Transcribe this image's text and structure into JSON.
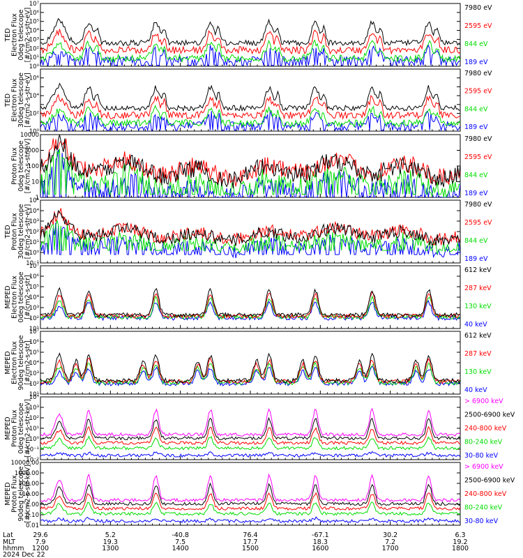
{
  "chart_data": {
    "type": "line",
    "date_label": "2024 Dec 22",
    "x_axis": {
      "row_labels": [
        "Lat",
        "MLT",
        "hhmm"
      ],
      "ticks": [
        {
          "lat": "29.6",
          "mlt": "7.9",
          "hhmm": "1200"
        },
        {
          "lat": "5.2",
          "mlt": "19.3",
          "hhmm": "1300"
        },
        {
          "lat": "-40.8",
          "mlt": "7.5",
          "hhmm": "1400"
        },
        {
          "lat": "76.4",
          "mlt": "17.7",
          "hhmm": "1500"
        },
        {
          "lat": "-67.1",
          "mlt": "18.3",
          "hhmm": "1600"
        },
        {
          "lat": "30.2",
          "mlt": "7.2",
          "hhmm": "1700"
        },
        {
          "lat": "6.3",
          "mlt": "19.2",
          "hhmm": "1800"
        }
      ]
    },
    "panels": [
      {
        "ylabel": [
          "TED",
          "Electron Flux",
          "0deg telescope",
          "[#/cm2-s-str-eV]"
        ],
        "yscale": "log",
        "ylim_exp": [
          0,
          7
        ],
        "tick_labels": [
          "10⁰",
          "10¹",
          "10²",
          "10³",
          "10⁴",
          "10⁵",
          "10⁶",
          "10⁷"
        ],
        "legend": [
          {
            "label": "7980 eV",
            "color": "#000000"
          },
          {
            "label": "2595 eV",
            "color": "#ff0000"
          },
          {
            "label": "844 eV",
            "color": "#00dd00"
          },
          {
            "label": "189 eV",
            "color": "#0000ff"
          }
        ]
      },
      {
        "ylabel": [
          "TED",
          "Electron Flux",
          "30deg telescope",
          "[#/cm2-s-str-eV]"
        ],
        "yscale": "log",
        "ylim_exp": [
          0,
          7
        ],
        "tick_labels": [
          "10⁰",
          "",
          "10²",
          "",
          "10⁴",
          "",
          "10⁶",
          ""
        ],
        "legend": [
          {
            "label": "7980 eV",
            "color": "#000000"
          },
          {
            "label": "2595 eV",
            "color": "#ff0000"
          },
          {
            "label": "844 eV",
            "color": "#00dd00"
          },
          {
            "label": "189 eV",
            "color": "#0000ff"
          }
        ]
      },
      {
        "ylabel": [
          "Proton Flux",
          "0deg telescope",
          "[#/cm2-s-str-eV]"
        ],
        "yscale": "log",
        "ylim_exp": [
          0,
          4
        ],
        "tick_labels": [
          "1",
          "10",
          "100",
          "1000",
          "10000"
        ],
        "legend": [
          {
            "label": "7980 eV",
            "color": "#000000"
          },
          {
            "label": "2595 eV",
            "color": "#ff0000"
          },
          {
            "label": "844 eV",
            "color": "#00dd00"
          },
          {
            "label": "189 eV",
            "color": "#0000ff"
          }
        ]
      },
      {
        "ylabel": [
          "TED",
          "Proton Flux",
          "30deg telescope",
          "[#/cm2-s-str-eV]"
        ],
        "yscale": "log",
        "ylim_exp": [
          -1,
          5
        ],
        "tick_labels": [
          "10⁻¹",
          "10⁰",
          "10¹",
          "10²",
          "10³",
          "10⁴",
          "10⁵"
        ],
        "legend": [
          {
            "label": "7980 eV",
            "color": "#000000"
          },
          {
            "label": "2595 eV",
            "color": "#ff0000"
          },
          {
            "label": "844 eV",
            "color": "#00dd00"
          },
          {
            "label": "189 eV",
            "color": "#0000ff"
          }
        ]
      },
      {
        "ylabel": [
          "MEPED",
          "Electron Flux",
          "0deg telescope",
          "[#/cm2-s-str]"
        ],
        "yscale": "log",
        "ylim_exp": [
          1,
          7
        ],
        "tick_labels": [
          "10¹",
          "10²",
          "10³",
          "10⁴",
          "10⁵",
          "10⁶",
          "10⁷"
        ],
        "legend": [
          {
            "label": "612 keV",
            "color": "#000000"
          },
          {
            "label": "287 keV",
            "color": "#ff0000"
          },
          {
            "label": "130 keV",
            "color": "#00dd00"
          },
          {
            "label": "40 keV",
            "color": "#0000ff"
          }
        ]
      },
      {
        "ylabel": [
          "MEPED",
          "Electron Flux",
          "90deg telescope",
          "[#/cm2-s-str]"
        ],
        "yscale": "log",
        "ylim_exp": [
          1,
          7
        ],
        "tick_labels": [
          "10¹",
          "10²",
          "10³",
          "10⁴",
          "10⁵",
          "10⁶",
          "10⁷"
        ],
        "legend": [
          {
            "label": "612 keV",
            "color": "#000000"
          },
          {
            "label": "287 keV",
            "color": "#ff0000"
          },
          {
            "label": "130 keV",
            "color": "#00dd00"
          },
          {
            "label": "40 keV",
            "color": "#0000ff"
          }
        ]
      },
      {
        "ylabel": [
          "MEPED",
          "Proton Flux",
          "0deg telescope",
          "[#/cm2-s-str-keV]"
        ],
        "yscale": "log",
        "ylim_exp": [
          -2,
          4
        ],
        "tick_labels": [
          "10⁻²",
          "10⁻¹",
          "10⁰",
          "10¹",
          "10²",
          "10³",
          "10⁴"
        ],
        "legend": [
          {
            "label": "> 6900 keV",
            "color": "#ff00ff"
          },
          {
            "label": "2500-6900 keV",
            "color": "#000000"
          },
          {
            "label": "240-800 keV",
            "color": "#ff0000"
          },
          {
            "label": "80-240 keV",
            "color": "#00dd00"
          },
          {
            "label": "30-80 keV",
            "color": "#0000ff"
          }
        ]
      },
      {
        "ylabel": [
          "MEPED",
          "Proton Flux",
          "90deg telescope",
          "[#/cm2-s-str-keV]"
        ],
        "yscale": "log",
        "ylim_exp": [
          -2,
          4
        ],
        "tick_labels": [
          "0.01",
          "0.10",
          "1.00",
          "10.00",
          "100.00",
          "1000.00",
          "10000.00"
        ],
        "legend": [
          {
            "label": "> 6900 keV",
            "color": "#ff00ff"
          },
          {
            "label": "2500-6900 keV",
            "color": "#000000"
          },
          {
            "label": "240-800 keV",
            "color": "#ff0000"
          },
          {
            "label": "80-240 keV",
            "color": "#00dd00"
          },
          {
            "label": "30-80 keV",
            "color": "#0000ff"
          }
        ]
      }
    ]
  }
}
